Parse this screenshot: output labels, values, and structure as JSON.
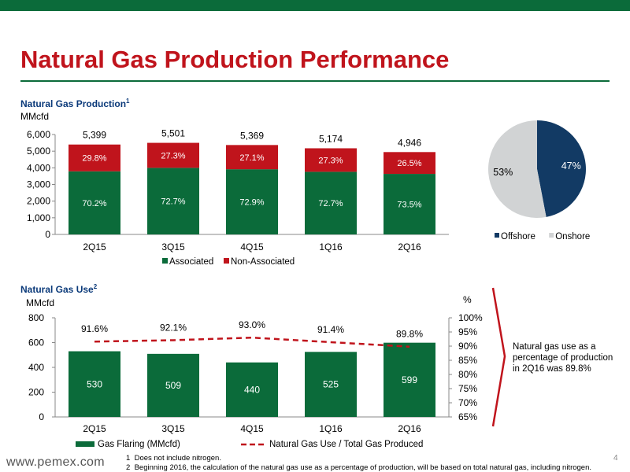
{
  "page": {
    "title": "Natural Gas Production Performance",
    "logo": "www.pemex.com",
    "page_number": "4",
    "colors": {
      "green": "#0b6b3a",
      "red": "#c0141c",
      "navy": "#123a64",
      "grey": "#d1d3d4"
    }
  },
  "production": {
    "title": "Natural Gas Production",
    "title_note": "1",
    "unit": "MMcfd"
  },
  "use": {
    "title": "Natural Gas Use",
    "title_note": "2",
    "unit_left": "MMcfd",
    "unit_right": "%",
    "callout": "Natural gas use as a percentage of production in 2Q16 was 89.8%"
  },
  "footnotes": [
    {
      "num": "1",
      "text": "Does not include nitrogen."
    },
    {
      "num": "2",
      "text": "Beginning 2016, the calculation of the natural gas use as a percentage of production, will be based on total natural gas, including nitrogen."
    }
  ],
  "chart_data": [
    {
      "type": "bar",
      "stacked": true,
      "title": "Natural Gas Production",
      "ylabel": "MMcfd",
      "categories": [
        "2Q15",
        "3Q15",
        "4Q15",
        "1Q16",
        "2Q16"
      ],
      "totals": [
        5399,
        5501,
        5369,
        5174,
        4946
      ],
      "total_labels": [
        "5,399",
        "5,501",
        "5,369",
        "5,174",
        "4,946"
      ],
      "series": [
        {
          "name": "Associated",
          "color": "#0b6b3a",
          "pct": [
            70.2,
            72.7,
            72.9,
            72.7,
            73.5
          ],
          "labels": [
            "70.2%",
            "72.7%",
            "72.9%",
            "72.7%",
            "73.5%"
          ]
        },
        {
          "name": "Non-Associated",
          "color": "#c0141c",
          "pct": [
            29.8,
            27.3,
            27.1,
            27.3,
            26.5
          ],
          "labels": [
            "29.8%",
            "27.3%",
            "27.1%",
            "27.3%",
            "26.5%"
          ]
        }
      ],
      "ylim": [
        0,
        6000
      ],
      "yticks": [
        0,
        1000,
        2000,
        3000,
        4000,
        5000,
        6000
      ],
      "ytick_labels": [
        "0",
        "1,000",
        "2,000",
        "3,000",
        "4,000",
        "5,000",
        "6,000"
      ],
      "legend": "bottom"
    },
    {
      "type": "pie",
      "labels": [
        "Offshore",
        "Onshore"
      ],
      "values": [
        47,
        53
      ],
      "value_labels": [
        "47%",
        "53%"
      ],
      "colors": [
        "#123a64",
        "#d1d3d4"
      ],
      "legend": "bottom"
    },
    {
      "type": "bar",
      "combo": true,
      "title": "Natural Gas Use",
      "ylabel": "MMcfd",
      "y2label": "%",
      "categories": [
        "2Q15",
        "3Q15",
        "4Q15",
        "1Q16",
        "2Q16"
      ],
      "series": [
        {
          "name": "Gas Flaring (MMcfd)",
          "kind": "bar",
          "color": "#0b6b3a",
          "values": [
            530,
            509,
            440,
            525,
            599
          ],
          "labels": [
            "530",
            "509",
            "440",
            "525",
            "599"
          ]
        },
        {
          "name": "Natural Gas Use / Total Gas Produced",
          "kind": "line",
          "style": "dashed",
          "axis": "right",
          "color": "#c0141c",
          "values": [
            91.6,
            92.1,
            93.0,
            91.4,
            89.8
          ],
          "labels": [
            "91.6%",
            "92.1%",
            "93.0%",
            "91.4%",
            "89.8%"
          ]
        }
      ],
      "ylim": [
        0,
        800
      ],
      "yticks": [
        0,
        200,
        400,
        600,
        800
      ],
      "ytick_labels": [
        "0",
        "200",
        "400",
        "600",
        "800"
      ],
      "y2lim": [
        65,
        100
      ],
      "y2ticks": [
        65,
        70,
        75,
        80,
        85,
        90,
        95,
        100
      ],
      "y2tick_labels": [
        "65%",
        "70%",
        "75%",
        "80%",
        "85%",
        "90%",
        "95%",
        "100%"
      ],
      "legend": "bottom"
    }
  ]
}
